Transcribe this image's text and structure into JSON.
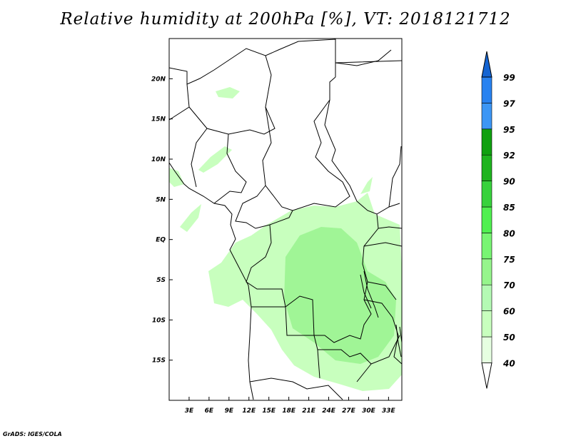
{
  "title": "Relative humidity at 200hPa [%], VT: 2018121712",
  "credit": "GrADS: IGES/COLA",
  "map": {
    "lon_labels": [
      "3E",
      "6E",
      "9E",
      "12E",
      "15E",
      "18E",
      "21E",
      "24E",
      "27E",
      "30E",
      "33E"
    ],
    "lon_values": [
      3,
      6,
      9,
      12,
      15,
      18,
      21,
      24,
      27,
      30,
      33
    ],
    "lat_labels": [
      "20N",
      "15N",
      "10N",
      "5N",
      "EQ",
      "5S",
      "10S",
      "15S"
    ],
    "lat_values": [
      20,
      15,
      10,
      5,
      0,
      -5,
      -10,
      -15
    ],
    "lon_range": [
      0,
      35
    ],
    "lat_range": [
      -20,
      25
    ]
  },
  "colorbar": {
    "levels": [
      "40",
      "50",
      "60",
      "70",
      "75",
      "80",
      "85",
      "90",
      "92",
      "95",
      "97",
      "99"
    ],
    "colors": [
      "#ffffff",
      "#e6ffe1",
      "#c8ffbe",
      "#b4fab4",
      "#96f58c",
      "#78f573",
      "#50f050",
      "#37d23c",
      "#1eb41e",
      "#0fa00f",
      "#3c96f5",
      "#2882f0",
      "#1464d2"
    ]
  }
}
